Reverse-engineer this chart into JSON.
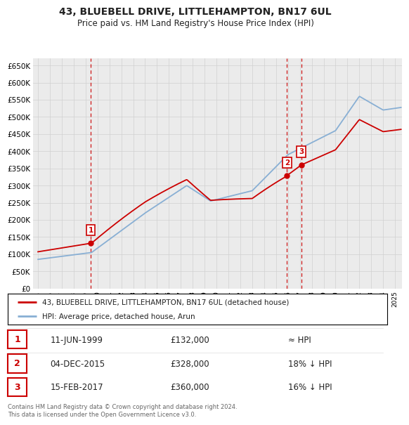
{
  "title": "43, BLUEBELL DRIVE, LITTLEHAMPTON, BN17 6UL",
  "subtitle": "Price paid vs. HM Land Registry's House Price Index (HPI)",
  "legend_line1": "43, BLUEBELL DRIVE, LITTLEHAMPTON, BN17 6UL (detached house)",
  "legend_line2": "HPI: Average price, detached house, Arun",
  "sale_color": "#cc0000",
  "hpi_color": "#88afd4",
  "grid_color": "#d0d0d0",
  "bg_color": "#ffffff",
  "plot_bg": "#ebebeb",
  "ylim": [
    0,
    670000
  ],
  "yticks": [
    0,
    50000,
    100000,
    150000,
    200000,
    250000,
    300000,
    350000,
    400000,
    450000,
    500000,
    550000,
    600000,
    650000
  ],
  "sales": [
    {
      "date": 1999.44,
      "price": 132000,
      "label": "1"
    },
    {
      "date": 2015.92,
      "price": 328000,
      "label": "2"
    },
    {
      "date": 2017.12,
      "price": 360000,
      "label": "3"
    }
  ],
  "table_rows": [
    {
      "num": "1",
      "date": "11-JUN-1999",
      "price": "£132,000",
      "rel": "≈ HPI"
    },
    {
      "num": "2",
      "date": "04-DEC-2015",
      "price": "£328,000",
      "rel": "18% ↓ HPI"
    },
    {
      "num": "3",
      "date": "15-FEB-2017",
      "price": "£360,000",
      "rel": "16% ↓ HPI"
    }
  ],
  "footnote": "Contains HM Land Registry data © Crown copyright and database right 2024.\nThis data is licensed under the Open Government Licence v3.0.",
  "vline_color": "#cc0000",
  "marker_color": "#cc0000",
  "xstart": 1995,
  "xend": 2025
}
